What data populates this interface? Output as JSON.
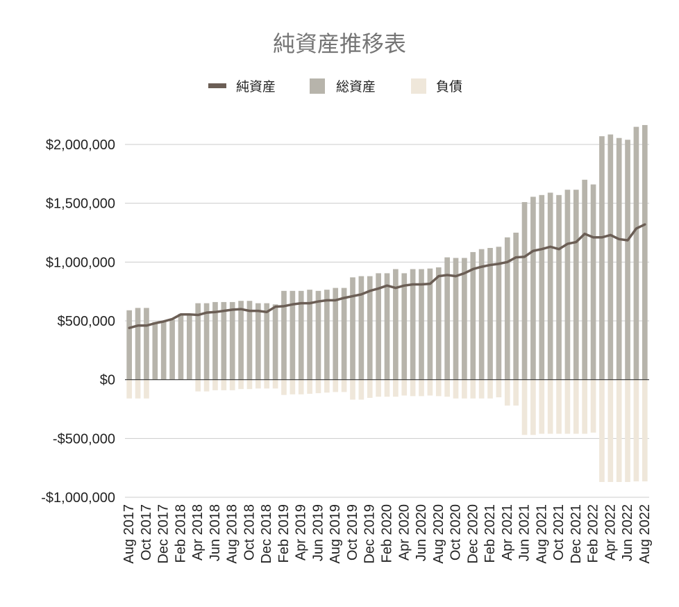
{
  "chart_data": {
    "type": "bar",
    "title": "純資産推移表",
    "xlabel": "",
    "ylabel": "",
    "ylim": [
      -1000000,
      2000000
    ],
    "y_ticks": [
      {
        "value": 2000000,
        "label": "$2,000,000"
      },
      {
        "value": 1500000,
        "label": "$1,500,000"
      },
      {
        "value": 1000000,
        "label": "$1,000,000"
      },
      {
        "value": 500000,
        "label": "$500,000"
      },
      {
        "value": 0,
        "label": "$0"
      },
      {
        "value": -500000,
        "label": "-$500,000"
      },
      {
        "value": -1000000,
        "label": "-$1,000,000"
      }
    ],
    "grid": true,
    "legend_position": "top",
    "colors": {
      "net": "#6b5e55",
      "assets": "#b7b4ab",
      "liabilities": "#efe7da",
      "title": "#757575"
    },
    "legend": [
      {
        "key": "net",
        "label": "純資産",
        "marker": "line"
      },
      {
        "key": "assets",
        "label": "総資産",
        "marker": "square"
      },
      {
        "key": "liabilities",
        "label": "負債",
        "marker": "square"
      }
    ],
    "categories": [
      "Aug 2017",
      "Sep 2017",
      "Oct 2017",
      "Nov 2017",
      "Dec 2017",
      "Jan 2018",
      "Feb 2018",
      "Mar 2018",
      "Apr 2018",
      "May 2018",
      "Jun 2018",
      "Jul 2018",
      "Aug 2018",
      "Sep 2018",
      "Oct 2018",
      "Nov 2018",
      "Dec 2018",
      "Jan 2019",
      "Feb 2019",
      "Mar 2019",
      "Apr 2019",
      "May 2019",
      "Jun 2019",
      "Jul 2019",
      "Aug 2019",
      "Sep 2019",
      "Oct 2019",
      "Nov 2019",
      "Dec 2019",
      "Jan 2020",
      "Feb 2020",
      "Mar 2020",
      "Apr 2020",
      "May 2020",
      "Jun 2020",
      "Jul 2020",
      "Aug 2020",
      "Sep 2020",
      "Oct 2020",
      "Nov 2020",
      "Dec 2020",
      "Jan 2021",
      "Feb 2021",
      "Mar 2021",
      "Apr 2021",
      "May 2021",
      "Jun 2021",
      "Jul 2021",
      "Aug 2021",
      "Sep 2021",
      "Oct 2021",
      "Nov 2021",
      "Dec 2021",
      "Jan 2022",
      "Feb 2022",
      "Mar 2022",
      "Apr 2022",
      "May 2022",
      "Jun 2022",
      "Jul 2022",
      "Aug 2022"
    ],
    "tick_labels": [
      "Aug 2017",
      "",
      "Oct 2017",
      "",
      "Dec 2017",
      "",
      "Feb 2018",
      "",
      "Apr 2018",
      "",
      "Jun 2018",
      "",
      "Aug 2018",
      "",
      "Oct 2018",
      "",
      "Dec 2018",
      "",
      "Feb 2019",
      "",
      "Apr 2019",
      "",
      "Jun 2019",
      "",
      "Aug 2019",
      "",
      "Oct 2019",
      "",
      "Dec 2019",
      "",
      "Feb 2020",
      "",
      "Apr 2020",
      "",
      "Jun 2020",
      "",
      "Aug 2020",
      "",
      "Oct 2020",
      "",
      "Dec 2020",
      "",
      "Feb 2021",
      "",
      "Apr 2021",
      "",
      "Jun 2021",
      "",
      "Aug 2021",
      "",
      "Oct 2021",
      "",
      "Dec 2021",
      "",
      "Feb 2022",
      "",
      "Apr 2022",
      "",
      "Jun 2022",
      "",
      "Aug 2022"
    ],
    "series": [
      {
        "name": "総資産",
        "type": "bar",
        "values": [
          590000,
          610000,
          610000,
          490000,
          500000,
          510000,
          560000,
          550000,
          650000,
          650000,
          660000,
          660000,
          660000,
          670000,
          670000,
          650000,
          650000,
          640000,
          755000,
          755000,
          755000,
          765000,
          755000,
          765000,
          780000,
          780000,
          870000,
          880000,
          880000,
          905000,
          905000,
          940000,
          905000,
          940000,
          940000,
          945000,
          955000,
          1040000,
          1035000,
          1035000,
          1085000,
          1110000,
          1120000,
          1130000,
          1210000,
          1250000,
          1510000,
          1555000,
          1570000,
          1590000,
          1570000,
          1615000,
          1615000,
          1700000,
          1660000,
          2070000,
          2085000,
          2055000,
          2040000,
          2150000,
          2165000
        ]
      },
      {
        "name": "負債",
        "type": "bar",
        "values": [
          -160000,
          -160000,
          -160000,
          0,
          0,
          0,
          0,
          0,
          -100000,
          -100000,
          -90000,
          -90000,
          -90000,
          -80000,
          -80000,
          -75000,
          -75000,
          -75000,
          -130000,
          -125000,
          -125000,
          -120000,
          -115000,
          -110000,
          -105000,
          -105000,
          -170000,
          -170000,
          -155000,
          -145000,
          -145000,
          -145000,
          -135000,
          -140000,
          -140000,
          -135000,
          -140000,
          -145000,
          -160000,
          -160000,
          -160000,
          -160000,
          -160000,
          -150000,
          -220000,
          -220000,
          -470000,
          -470000,
          -460000,
          -460000,
          -460000,
          -460000,
          -460000,
          -460000,
          -450000,
          -870000,
          -870000,
          -870000,
          -870000,
          -865000,
          -865000
        ]
      },
      {
        "name": "純資産",
        "type": "line",
        "values": [
          440000,
          460000,
          460000,
          480000,
          495000,
          515000,
          555000,
          555000,
          550000,
          570000,
          575000,
          585000,
          595000,
          600000,
          585000,
          585000,
          575000,
          620000,
          625000,
          640000,
          650000,
          650000,
          665000,
          675000,
          675000,
          695000,
          710000,
          725000,
          755000,
          775000,
          800000,
          780000,
          800000,
          810000,
          810000,
          815000,
          880000,
          890000,
          880000,
          905000,
          940000,
          960000,
          975000,
          985000,
          1000000,
          1040000,
          1045000,
          1095000,
          1110000,
          1130000,
          1110000,
          1155000,
          1170000,
          1240000,
          1210000,
          1210000,
          1230000,
          1195000,
          1185000,
          1285000,
          1320000
        ]
      }
    ]
  }
}
